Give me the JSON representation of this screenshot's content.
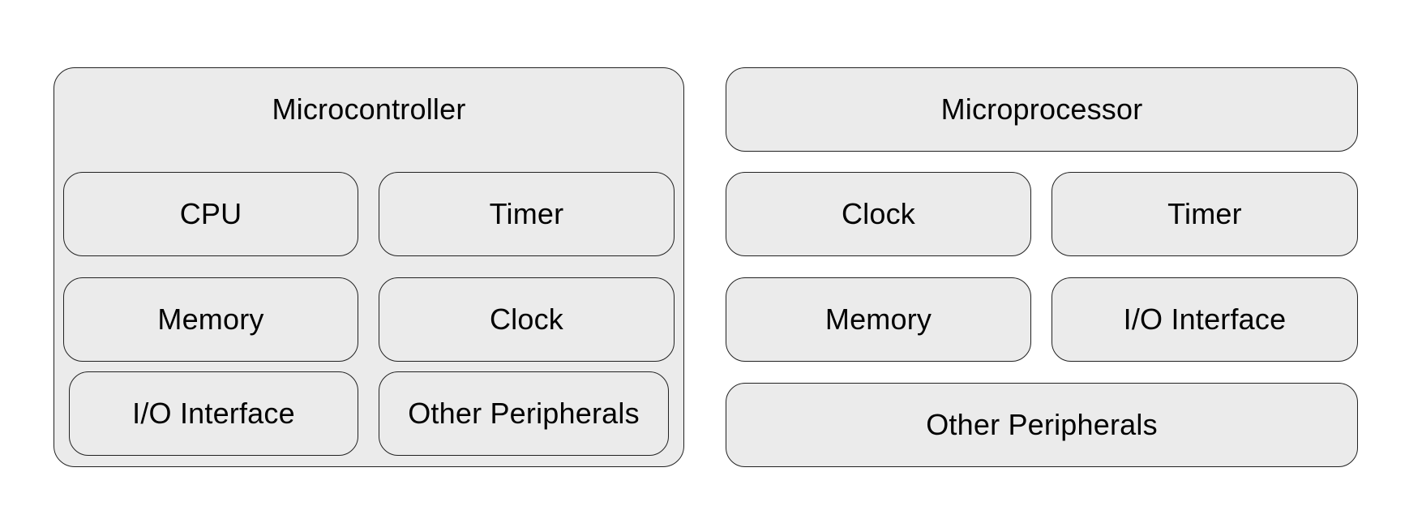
{
  "microcontroller": {
    "title": "Microcontroller",
    "components": [
      "CPU",
      "Timer",
      "Memory",
      "Clock",
      "I/O Interface",
      "Other Peripherals"
    ]
  },
  "microprocessor": {
    "title": "Microprocessor",
    "components": [
      "Clock",
      "Timer",
      "Memory",
      "I/O Interface",
      "Other Peripherals"
    ]
  }
}
